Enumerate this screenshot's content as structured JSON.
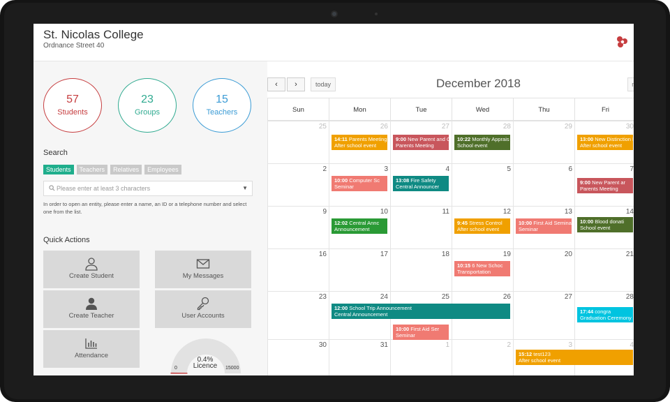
{
  "header": {
    "school_name": "St. Nicolas College",
    "address": "Ordnance Street 40"
  },
  "stats": [
    {
      "value": "57",
      "label": "Students",
      "color": "#c63d3f"
    },
    {
      "value": "23",
      "label": "Groups",
      "color": "#2faa90"
    },
    {
      "value": "15",
      "label": "Teachers",
      "color": "#3a9bd5"
    }
  ],
  "search": {
    "title": "Search",
    "filters": [
      "Students",
      "Teachers",
      "Relatives",
      "Employees"
    ],
    "active_filter": "Students",
    "placeholder": "Please enter at least 3 characters",
    "help": "In order to open an entity, please enter a name, an ID or a telephone number and select one from the list."
  },
  "quick_actions": {
    "title": "Quick Actions",
    "items": [
      {
        "label": "Create Student",
        "icon": "user-outline-icon"
      },
      {
        "label": "My Messages",
        "icon": "envelope-icon"
      },
      {
        "label": "Create Teacher",
        "icon": "user-solid-icon"
      },
      {
        "label": "User Accounts",
        "icon": "key-icon"
      },
      {
        "label": "Attendance",
        "icon": "bar-chart-icon"
      }
    ]
  },
  "licence": {
    "percent": "0.4%",
    "fraction": 0.004,
    "label": "Licence",
    "min": "0",
    "max": "15000"
  },
  "calendar": {
    "title": "December 2018",
    "prev": "‹",
    "next": "›",
    "today": "today",
    "right_button": "m",
    "weekdays": [
      "Sun",
      "Mon",
      "Tue",
      "Wed",
      "Thu",
      "Fri"
    ],
    "weeks": [
      [
        "25",
        "26",
        "27",
        "28",
        "29",
        "30"
      ],
      [
        "2",
        "3",
        "4",
        "5",
        "6",
        "7"
      ],
      [
        "9",
        "10",
        "11",
        "12",
        "13",
        "14"
      ],
      [
        "16",
        "17",
        "18",
        "19",
        "20",
        "21"
      ],
      [
        "23",
        "24",
        "25",
        "26",
        "27",
        "28"
      ],
      [
        "30",
        "31",
        "1",
        "2",
        "3",
        "4"
      ]
    ],
    "events": [
      {
        "time": "14:11",
        "title": "Parents Meeting",
        "sub": "After school event",
        "color": "#f0a000"
      },
      {
        "time": "9:00",
        "title": "New Parent and G",
        "sub": "Parents Meeting",
        "color": "#c8565c"
      },
      {
        "time": "10:22",
        "title": "Monthly Apprais",
        "sub": "School event",
        "color": "#4f6f2a"
      },
      {
        "time": "13:00",
        "title": "New Distinction I",
        "sub": "After school event",
        "color": "#f0a000"
      },
      {
        "time": "10:00",
        "title": "Computer Sc",
        "sub": "Seminar",
        "color": "#f07a72"
      },
      {
        "time": "13:08",
        "title": "Fire Safety",
        "sub": "Central Announcer",
        "color": "#0f8a83"
      },
      {
        "time": "9:00",
        "title": "New Parent ar",
        "sub": "Parents Meeting",
        "color": "#c8565c"
      },
      {
        "time": "12:02",
        "title": "Central Annc",
        "sub": "Announcement",
        "color": "#2a9a35"
      },
      {
        "time": "9:45",
        "title": "Stress Control",
        "sub": "After school event",
        "color": "#f0a000"
      },
      {
        "time": "10:00",
        "title": "First Aid Seminar",
        "sub": "Seminar",
        "color": "#f07a72"
      },
      {
        "time": "10:00",
        "title": "Blood donati",
        "sub": "School event",
        "color": "#4f6f2a"
      },
      {
        "time": "10:15",
        "title": "6 New Schoc",
        "sub": "Transportation",
        "color": "#f07a72"
      },
      {
        "time": "12:00",
        "title": "School Trip Announcement",
        "sub": "Central Announcement",
        "color": "#0f8a83"
      },
      {
        "time": "17:44",
        "title": "congra",
        "sub": "Graduation Ceremony",
        "color": "#00c4e0"
      },
      {
        "time": "10:00",
        "title": "First Aid Ser",
        "sub": "Seminar",
        "color": "#f07a72"
      },
      {
        "time": "15:12",
        "title": "test123",
        "sub": "After school event",
        "color": "#f0a000"
      }
    ]
  }
}
